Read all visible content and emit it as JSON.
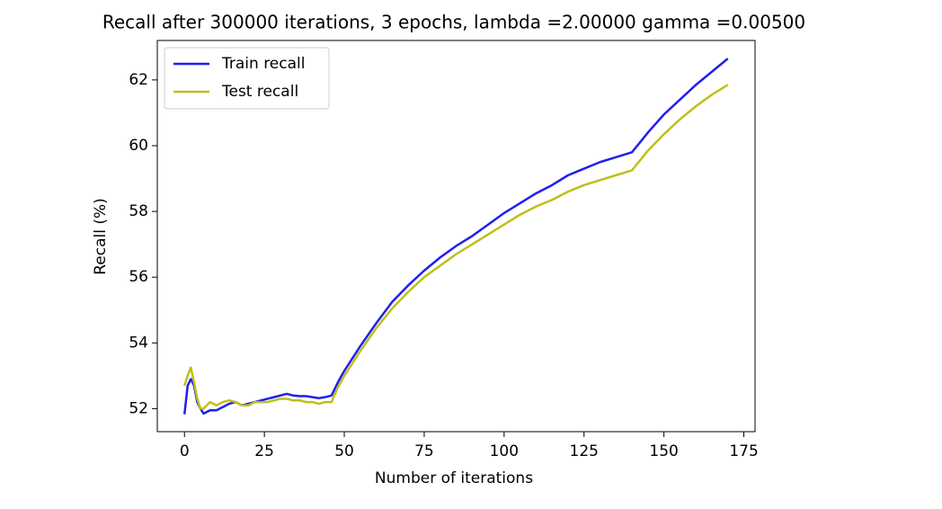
{
  "chart_data": {
    "type": "line",
    "title": "Recall after 300000 iterations, 3 epochs, lambda =2.00000 gamma =0.00500",
    "x_label": "Number of iterations",
    "y_label": "Recall (%)",
    "x": [
      0,
      1,
      2,
      3,
      4,
      5,
      6,
      8,
      10,
      12,
      14,
      16,
      18,
      20,
      22,
      24,
      26,
      28,
      30,
      32,
      34,
      36,
      38,
      40,
      42,
      44,
      46,
      48,
      50,
      55,
      60,
      65,
      70,
      75,
      80,
      85,
      90,
      95,
      100,
      105,
      110,
      115,
      120,
      125,
      130,
      135,
      140,
      145,
      150,
      155,
      160,
      165,
      170
    ],
    "series": [
      {
        "name": "Train recall",
        "color": "#1f1ff0",
        "values": [
          51.83,
          52.7,
          52.9,
          52.7,
          52.2,
          52.0,
          51.85,
          51.95,
          51.95,
          52.05,
          52.15,
          52.2,
          52.1,
          52.15,
          52.2,
          52.25,
          52.3,
          52.35,
          52.4,
          52.45,
          52.4,
          52.38,
          52.38,
          52.35,
          52.32,
          52.35,
          52.4,
          52.8,
          53.15,
          53.9,
          54.6,
          55.25,
          55.75,
          56.2,
          56.6,
          56.95,
          57.25,
          57.6,
          57.95,
          58.25,
          58.55,
          58.8,
          59.1,
          59.3,
          59.5,
          59.65,
          59.8,
          60.4,
          60.95,
          61.4,
          61.85,
          62.25,
          62.65
        ]
      },
      {
        "name": "Test recall",
        "color": "#bfbf1a",
        "values": [
          52.7,
          53.0,
          53.25,
          52.8,
          52.3,
          52.0,
          52.0,
          52.2,
          52.1,
          52.2,
          52.25,
          52.2,
          52.1,
          52.1,
          52.2,
          52.2,
          52.2,
          52.25,
          52.3,
          52.3,
          52.25,
          52.25,
          52.2,
          52.2,
          52.15,
          52.2,
          52.2,
          52.65,
          53.0,
          53.75,
          54.45,
          55.05,
          55.55,
          56.0,
          56.35,
          56.7,
          57.0,
          57.3,
          57.6,
          57.9,
          58.15,
          58.35,
          58.6,
          58.8,
          58.95,
          59.1,
          59.25,
          59.85,
          60.35,
          60.8,
          61.2,
          61.55,
          61.85
        ]
      }
    ],
    "xlim": [
      -8.5,
      178.5
    ],
    "xticks": [
      0,
      25,
      50,
      75,
      100,
      125,
      150,
      175
    ],
    "ylim": [
      51.3,
      63.2
    ],
    "yticks": [
      52,
      54,
      56,
      58,
      60,
      62
    ],
    "legend": "upper-left",
    "grid": false
  }
}
